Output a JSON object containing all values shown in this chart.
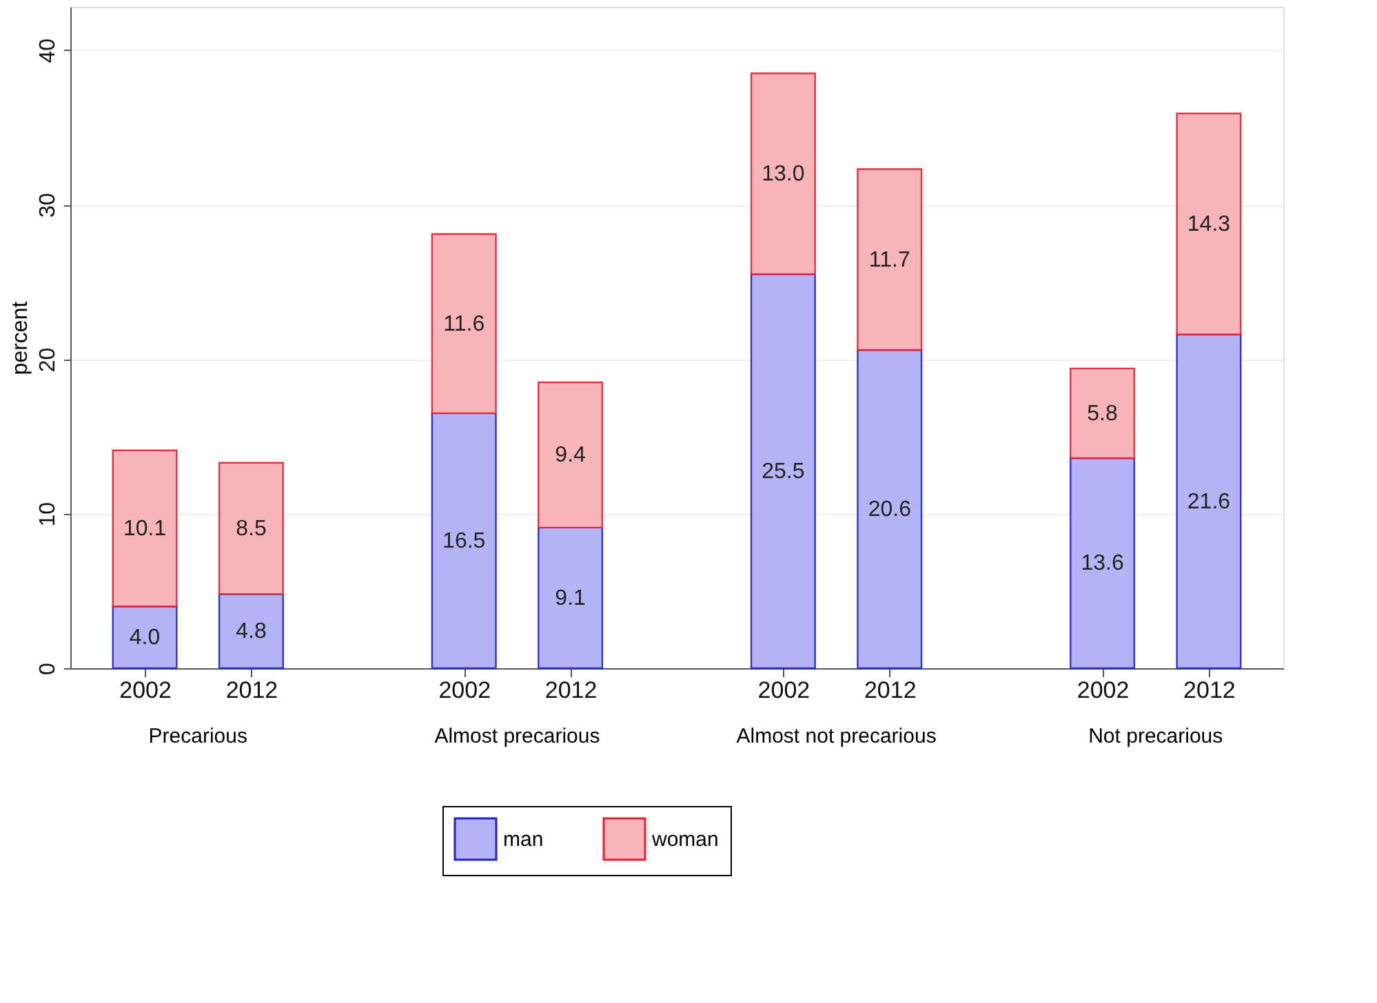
{
  "chart_data": {
    "type": "bar",
    "stacked": true,
    "ylabel": "percent",
    "categories": [
      "2002",
      "2012",
      null,
      "2002",
      "2012",
      null,
      "2002",
      "2012",
      null,
      "2002",
      "2012"
    ],
    "series": [
      {
        "name": "man",
        "color": "#b4b4f5",
        "values": [
          4.0,
          4.8,
          null,
          16.5,
          9.1,
          null,
          25.5,
          20.6,
          null,
          13.6,
          21.6
        ],
        "value_labels": [
          "4.0",
          "4.8",
          null,
          "16.5",
          "9.1",
          null,
          "25.5",
          "20.6",
          null,
          "13.6",
          "21.6"
        ]
      },
      {
        "name": "woman",
        "color": "#f7b4b9",
        "values": [
          10.1,
          8.5,
          null,
          11.6,
          9.4,
          null,
          13.0,
          11.7,
          null,
          5.8,
          14.3
        ],
        "value_labels": [
          "10.1",
          "8.5",
          null,
          "11.6",
          "9.4",
          null,
          "13.0",
          "11.7",
          null,
          "5.8",
          "14.3"
        ]
      }
    ],
    "annotations": [
      "Precarious",
      "Almost precarious",
      "Almost not precarious",
      "Not precarious"
    ],
    "ylim": [
      0,
      42.8
    ],
    "yticks": [
      0,
      10,
      20,
      30,
      40
    ],
    "grid": "y",
    "legend": "bottom"
  }
}
